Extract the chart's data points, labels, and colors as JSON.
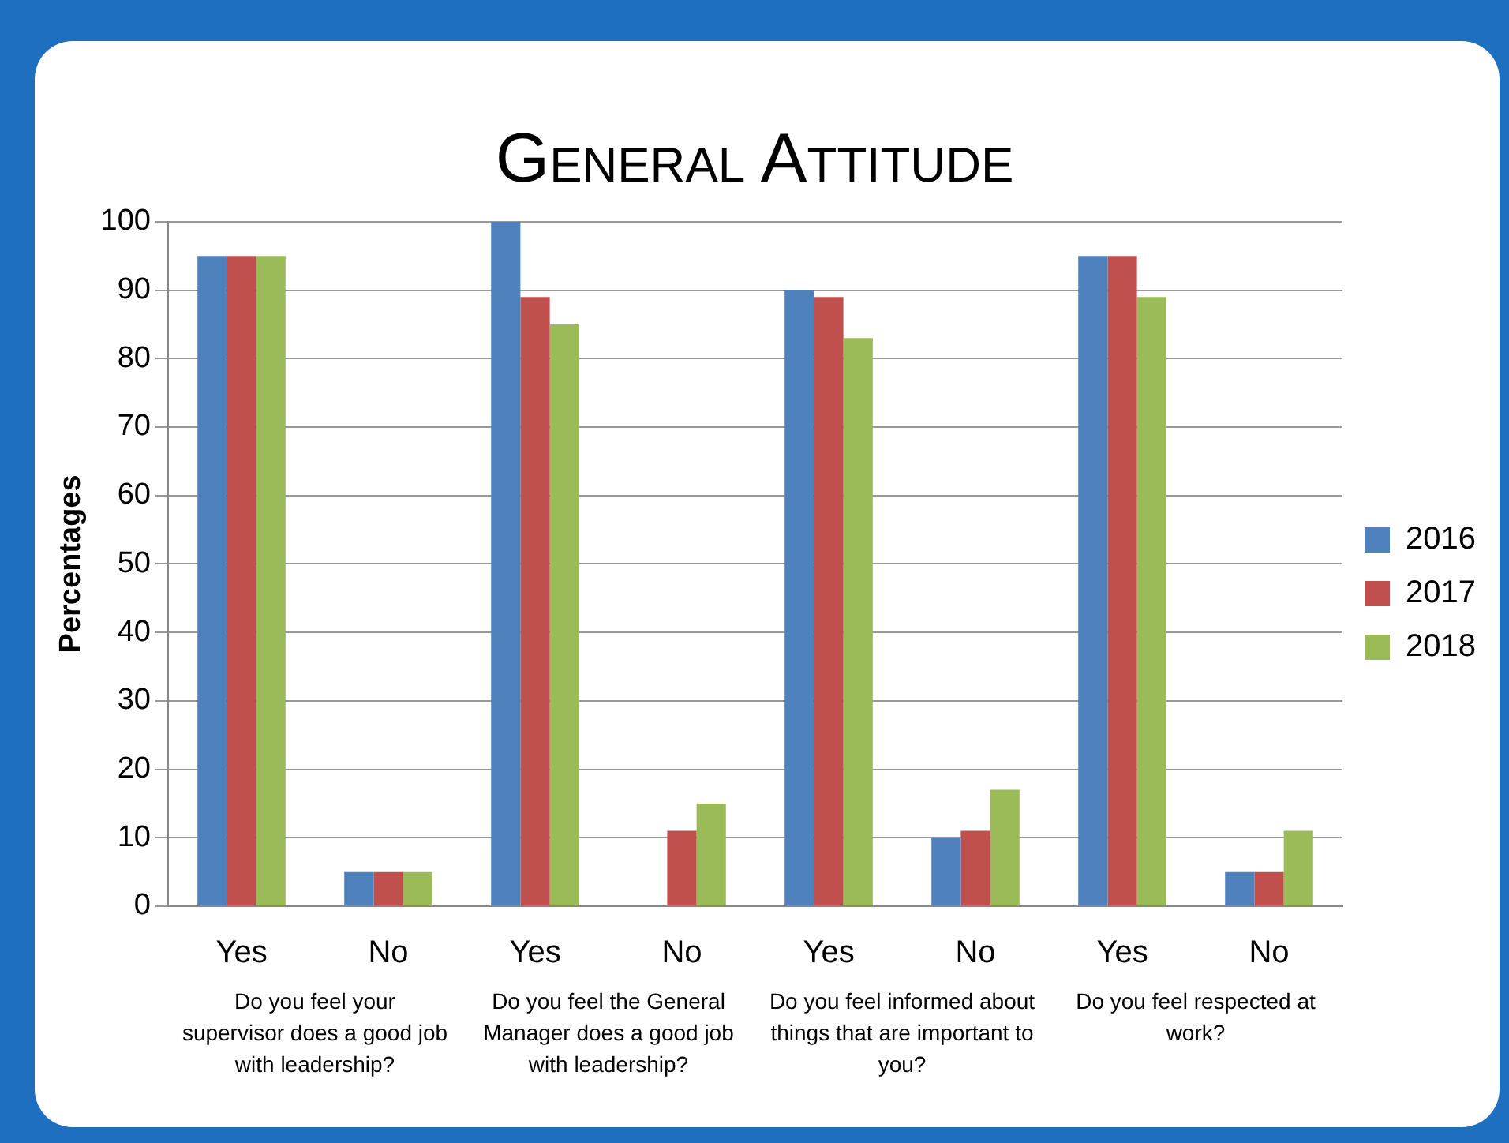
{
  "chart_data": {
    "type": "bar",
    "title": "General Attitude",
    "ylabel": "Percentages",
    "categories": [
      "Yes",
      "No",
      "Yes",
      "No",
      "Yes",
      "No",
      "Yes",
      "No"
    ],
    "series": [
      {
        "name": "2016",
        "color": "#4f81bd",
        "values": [
          95,
          5,
          100,
          0,
          90,
          10,
          95,
          5
        ]
      },
      {
        "name": "2017",
        "color": "#c0504d",
        "values": [
          95,
          5,
          89,
          11,
          89,
          11,
          95,
          5
        ]
      },
      {
        "name": "2018",
        "color": "#9bbb59",
        "values": [
          95,
          5,
          85,
          15,
          83,
          17,
          89,
          11
        ]
      }
    ],
    "ylim": [
      0,
      100
    ],
    "yticks": [
      0,
      10,
      20,
      30,
      40,
      50,
      60,
      70,
      80,
      90,
      100
    ],
    "grid": "y",
    "legend": "right",
    "annotations": [
      "Do you feel your supervisor does a good job with leadership?",
      "Do you feel the General Manager does a good job with leadership?",
      "Do you feel informed about things that are important to you?",
      "Do you feel respected at work?"
    ]
  }
}
